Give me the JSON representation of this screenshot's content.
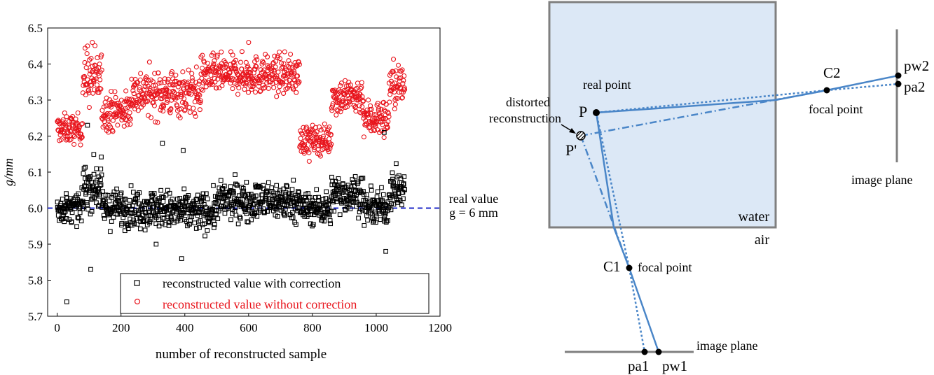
{
  "chart_data": {
    "type": "scatter",
    "xlabel": "number of reconstructed sample",
    "ylabel": "g/mm",
    "xlim": [
      -30,
      1200
    ],
    "ylim": [
      5.7,
      6.5
    ],
    "xticks": [
      0,
      200,
      400,
      600,
      800,
      1000,
      1200
    ],
    "yticks": [
      5.7,
      5.8,
      5.9,
      6.0,
      6.1,
      6.2,
      6.3,
      6.4,
      6.5
    ],
    "grid": false,
    "legend_position": "bottom-right",
    "reference_line": {
      "y": 6.0,
      "color": "#1f28c8",
      "style": "dashed"
    },
    "series": [
      {
        "name": "reconstructed value with correction",
        "marker": "square",
        "color": "#000000",
        "sample_count": 1090,
        "segments": [
          {
            "x": [
              0,
              80
            ],
            "mean": 6.0,
            "spread": 0.03
          },
          {
            "x": [
              80,
              140
            ],
            "mean": 6.06,
            "spread": 0.05
          },
          {
            "x": [
              140,
              350
            ],
            "mean": 6.0,
            "spread": 0.04
          },
          {
            "x": [
              350,
              500
            ],
            "mean": 5.99,
            "spread": 0.04
          },
          {
            "x": [
              500,
              760
            ],
            "mean": 6.02,
            "spread": 0.04
          },
          {
            "x": [
              760,
              860
            ],
            "mean": 6.0,
            "spread": 0.035
          },
          {
            "x": [
              860,
              960
            ],
            "mean": 6.04,
            "spread": 0.04
          },
          {
            "x": [
              960,
              1040
            ],
            "mean": 6.0,
            "spread": 0.035
          },
          {
            "x": [
              1040,
              1090
            ],
            "mean": 6.05,
            "spread": 0.04
          }
        ],
        "outliers": [
          [
            30,
            5.74
          ],
          [
            95,
            6.23
          ],
          [
            105,
            5.83
          ],
          [
            310,
            5.9
          ],
          [
            330,
            6.18
          ],
          [
            390,
            5.86
          ],
          [
            395,
            6.16
          ],
          [
            1025,
            6.21
          ],
          [
            1030,
            5.88
          ]
        ]
      },
      {
        "name": "reconstructed value without correction",
        "marker": "circle",
        "color": "#e8141c",
        "sample_count": 1090,
        "segments": [
          {
            "x": [
              0,
              80
            ],
            "mean": 6.22,
            "spread": 0.03
          },
          {
            "x": [
              80,
              140
            ],
            "mean": 6.36,
            "spread": 0.06
          },
          {
            "x": [
              140,
              230
            ],
            "mean": 6.27,
            "spread": 0.04
          },
          {
            "x": [
              230,
              450
            ],
            "mean": 6.32,
            "spread": 0.05
          },
          {
            "x": [
              450,
              760
            ],
            "mean": 6.37,
            "spread": 0.04
          },
          {
            "x": [
              760,
              860
            ],
            "mean": 6.19,
            "spread": 0.03
          },
          {
            "x": [
              860,
              960
            ],
            "mean": 6.31,
            "spread": 0.04
          },
          {
            "x": [
              960,
              1040
            ],
            "mean": 6.25,
            "spread": 0.04
          },
          {
            "x": [
              1040,
              1090
            ],
            "mean": 6.34,
            "spread": 0.05
          }
        ],
        "outliers": [
          [
            95,
            6.45
          ],
          [
            110,
            6.46
          ],
          [
            600,
            6.46
          ],
          [
            790,
            6.13
          ]
        ]
      }
    ],
    "annotations": [
      "real value",
      "g = 6 mm"
    ]
  },
  "diagram": {
    "medium_upper": "water",
    "medium_lower": "air",
    "labels": {
      "real_point": "real point",
      "distorted": [
        "distorted",
        "reconstruction"
      ],
      "P": "P",
      "P_prime": "P'",
      "C1": "C1",
      "C2": "C2",
      "focal_point_1": "focal point",
      "focal_point_2": "focal point",
      "image_plane_bottom": "image plane",
      "image_plane_right": "image plane",
      "pa1": "pa1",
      "pw1": "pw1",
      "pw2": "pw2",
      "pa2": "pa2"
    },
    "colors": {
      "water_fill": "#dce8f6",
      "tank_border": "#7f7f7f",
      "ray": "#4a86c8",
      "plane": "#7f7f7f"
    }
  }
}
